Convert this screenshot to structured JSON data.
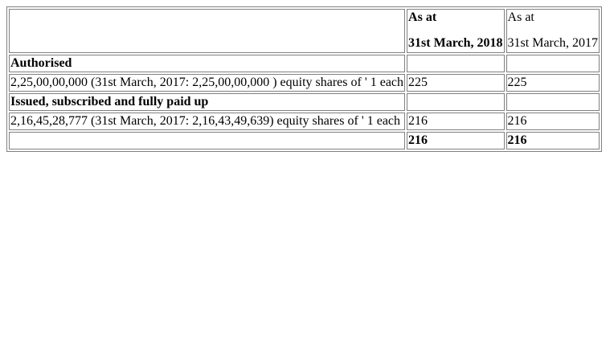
{
  "header": {
    "col_2018_line1": "As at",
    "col_2018_line2": "31st March, 2018",
    "col_2017_line1": "As at",
    "col_2017_line2": "31st March, 2017"
  },
  "rows": [
    {
      "desc": "Authorised",
      "v2018": "",
      "v2017": "",
      "bold": true
    },
    {
      "desc": "2,25,00,00,000 (31st March, 2017: 2,25,00,00,000 ) equity shares of ' 1 each",
      "v2018": "225",
      "v2017": "225",
      "bold": false
    },
    {
      "desc": "Issued, subscribed and fully paid up",
      "v2018": "",
      "v2017": "",
      "bold": true
    },
    {
      "desc": "2,16,45,28,777 (31st March, 2017: 2,16,43,49,639) equity shares of ' 1 each",
      "v2018": "216",
      "v2017": "216",
      "bold": false
    },
    {
      "desc": "",
      "v2018": "216",
      "v2017": "216",
      "bold": false,
      "values_bold": true
    }
  ]
}
